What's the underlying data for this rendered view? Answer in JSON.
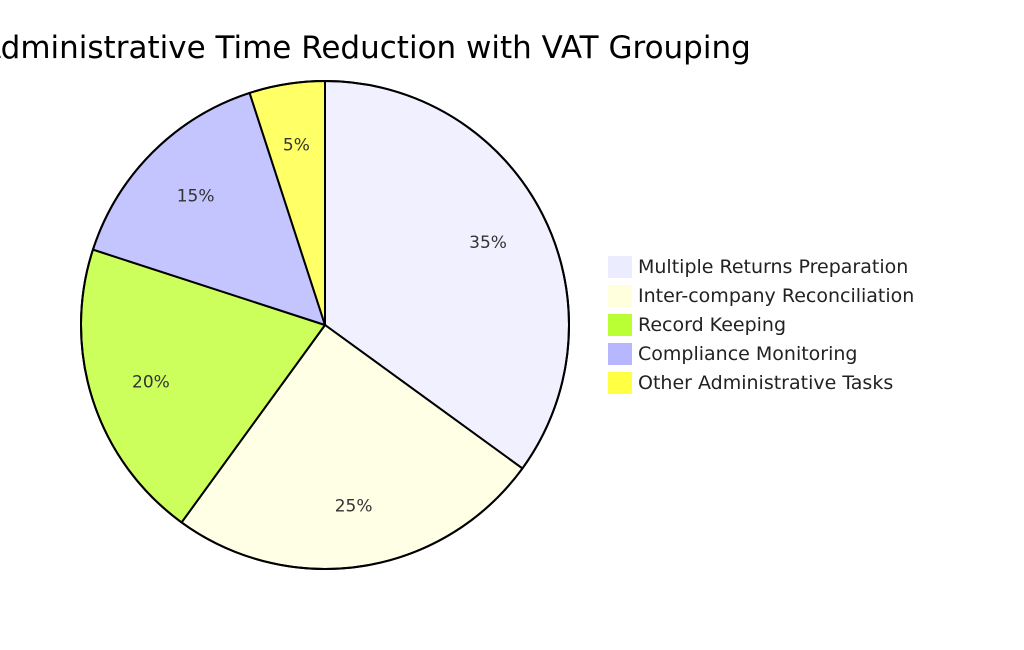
{
  "chart_data": {
    "type": "pie",
    "title": "Administrative Time Reduction with VAT Grouping",
    "categories": [
      "Multiple Returns Preparation",
      "Inter-company Reconciliation",
      "Record Keeping",
      "Compliance Monitoring",
      "Other Administrative Tasks"
    ],
    "values": [
      35,
      25,
      20,
      15,
      5
    ],
    "labels": [
      "35%",
      "25%",
      "20%",
      "15%",
      "5%"
    ],
    "colors": [
      "#f0f0ff",
      "#ffffe6",
      "#ccff5c",
      "#c4c4ff",
      "#ffff66"
    ],
    "legend_colors": [
      "#ececff",
      "#ffffde",
      "#b9ff33",
      "#b7b7ff",
      "#ffff44"
    ],
    "legend_position": "right"
  }
}
